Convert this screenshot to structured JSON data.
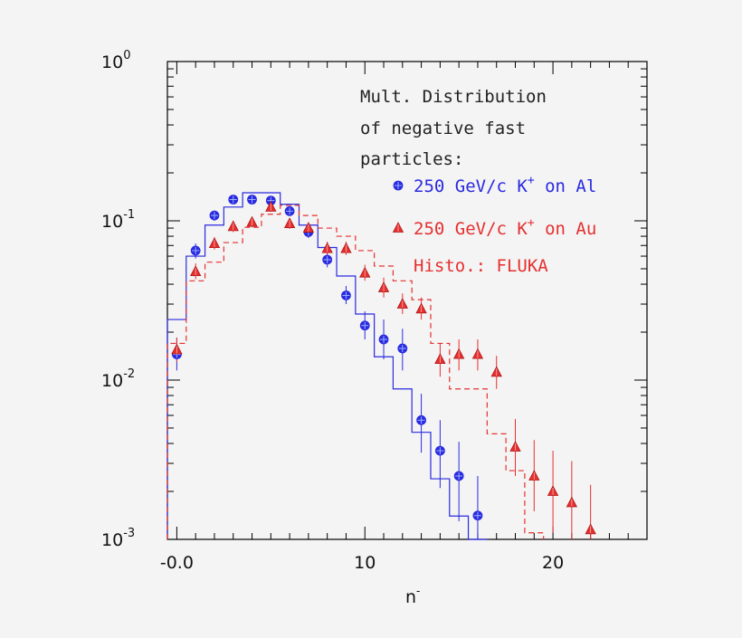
{
  "chart_data": {
    "type": "scatter",
    "title": "Mult. Distribution of negative fast particles:",
    "title_lines": [
      "Mult. Distribution",
      "of negative fast",
      "particles:"
    ],
    "xlabel_base": "n",
    "xlabel_sup": "-",
    "ylabel": "",
    "xlim": [
      -0.5,
      25
    ],
    "ylim_log10": [
      -3,
      0
    ],
    "yscale": "log",
    "x_ticks": [
      {
        "v": 0,
        "label": "-0.0"
      },
      {
        "v": 10,
        "label": "10"
      },
      {
        "v": 20,
        "label": "20"
      }
    ],
    "y_ticks": [
      {
        "v": 0,
        "base": "10",
        "exp": "0"
      },
      {
        "v": -1,
        "base": "10",
        "exp": "-1"
      },
      {
        "v": -2,
        "base": "10",
        "exp": "-2"
      },
      {
        "v": -3,
        "base": "10",
        "exp": "-3"
      }
    ],
    "series": [
      {
        "name": "250 GeV/c K+ on Al",
        "label_main": "250 GeV/c K",
        "label_sup": "+",
        "label_tail": " on Al",
        "color": "#2a2ae0",
        "marker": "circle",
        "points": [
          [
            0,
            0.0145,
            0.0115,
            0.0185
          ],
          [
            1,
            0.065,
            0.058,
            0.072
          ],
          [
            2,
            0.108,
            0.1,
            0.116
          ],
          [
            3,
            0.136,
            0.128,
            0.145
          ],
          [
            4,
            0.136,
            0.128,
            0.145
          ],
          [
            5,
            0.134,
            0.126,
            0.143
          ],
          [
            6,
            0.115,
            0.107,
            0.123
          ],
          [
            7,
            0.085,
            0.078,
            0.092
          ],
          [
            8,
            0.057,
            0.051,
            0.063
          ],
          [
            9,
            0.034,
            0.03,
            0.039
          ],
          [
            10,
            0.022,
            0.018,
            0.027
          ],
          [
            11,
            0.018,
            0.0135,
            0.024
          ],
          [
            12,
            0.0158,
            0.0115,
            0.021
          ],
          [
            13,
            0.0056,
            0.0035,
            0.0082
          ],
          [
            14,
            0.0036,
            0.0021,
            0.0056
          ],
          [
            15,
            0.0025,
            0.0013,
            0.0041
          ],
          [
            16,
            0.00141,
            0.001,
            0.0025
          ]
        ],
        "histogram": {
          "edges": [
            -0.5,
            0.5,
            1.5,
            2.5,
            3.5,
            5.5,
            6.5,
            7.5,
            8.5,
            9.5,
            10.5,
            11.5,
            12.5,
            13.5,
            14.5,
            15.5,
            16.5
          ],
          "values": [
            0.024,
            0.06,
            0.094,
            0.122,
            0.15,
            0.127,
            0.094,
            0.068,
            0.045,
            0.026,
            0.014,
            0.0088,
            0.0047,
            0.0024,
            0.0014,
            0.001
          ],
          "style": "solid"
        }
      },
      {
        "name": "250 GeV/c K+ on Au",
        "label_main": "250 GeV/c K",
        "label_sup": "+",
        "label_tail": " on Au",
        "color": "#e53030",
        "marker": "triangle",
        "points": [
          [
            0,
            0.0155,
            0.013,
            0.0185
          ],
          [
            1,
            0.048,
            0.043,
            0.054
          ],
          [
            2,
            0.072,
            0.066,
            0.079
          ],
          [
            3,
            0.092,
            0.085,
            0.1
          ],
          [
            4,
            0.098,
            0.091,
            0.106
          ],
          [
            5,
            0.122,
            0.114,
            0.131
          ],
          [
            6,
            0.096,
            0.089,
            0.104
          ],
          [
            7,
            0.09,
            0.083,
            0.098
          ],
          [
            8,
            0.067,
            0.061,
            0.074
          ],
          [
            9,
            0.067,
            0.061,
            0.074
          ],
          [
            10,
            0.047,
            0.042,
            0.053
          ],
          [
            11,
            0.038,
            0.033,
            0.044
          ],
          [
            12,
            0.03,
            0.026,
            0.035
          ],
          [
            13,
            0.028,
            0.024,
            0.033
          ],
          [
            14,
            0.0135,
            0.0105,
            0.017
          ],
          [
            15,
            0.0145,
            0.0115,
            0.018
          ],
          [
            16,
            0.0145,
            0.0115,
            0.018
          ],
          [
            17,
            0.0112,
            0.0088,
            0.0142
          ],
          [
            18,
            0.0038,
            0.0025,
            0.0057
          ],
          [
            19,
            0.0025,
            0.0015,
            0.0042
          ],
          [
            20,
            0.002,
            0.0011,
            0.0036
          ],
          [
            21,
            0.0017,
            0.00095,
            0.0031
          ],
          [
            22,
            0.00115,
            0.00095,
            0.0022
          ]
        ],
        "histogram": {
          "edges": [
            -0.5,
            0.5,
            1.5,
            2.5,
            3.5,
            4.5,
            5.5,
            6.5,
            7.5,
            8.5,
            9.5,
            10.5,
            11.5,
            12.5,
            13.5,
            14.5,
            15.5,
            16.5,
            17.5,
            18.5,
            19.5
          ],
          "values": [
            0.017,
            0.042,
            0.055,
            0.073,
            0.091,
            0.11,
            0.125,
            0.108,
            0.09,
            0.08,
            0.065,
            0.052,
            0.042,
            0.032,
            0.017,
            0.0088,
            0.0088,
            0.0046,
            0.0027,
            0.0011
          ],
          "style": "dashed"
        }
      }
    ],
    "legend_note": "Histo.: FLUKA",
    "legend_note_color": "#e53030"
  }
}
